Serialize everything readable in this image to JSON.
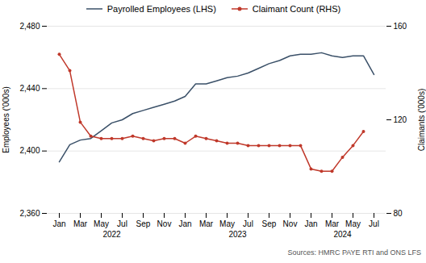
{
  "chart_data": {
    "type": "line",
    "categories": [
      "Jan",
      null,
      "Mar",
      null,
      "May",
      null,
      "Jul",
      null,
      "Sep",
      null,
      "Nov",
      null,
      "Jan",
      null,
      "Mar",
      null,
      "May",
      null,
      "Jul",
      null,
      "Sep",
      null,
      "Nov",
      null,
      "Jan",
      null,
      "Mar",
      null,
      "May",
      null,
      "Jul"
    ],
    "annotations": [
      "2022",
      "2023",
      "2024"
    ],
    "series": [
      {
        "name": "Payrolled Employees (LHS)",
        "color": "#3a5068",
        "values": [
          2393,
          2404,
          2407,
          2408,
          2413,
          2418,
          2420,
          2424,
          2426,
          2428,
          2430,
          2432,
          2435,
          2443,
          2443,
          2445,
          2447,
          2448,
          2450,
          2453,
          2456,
          2458,
          2461,
          2462,
          2462,
          2463,
          2461,
          2460,
          2461,
          2461,
          2449
        ]
      },
      {
        "name": "Claimant Count (RHS)",
        "color": "#c0392b",
        "axis": "y2",
        "marker": "circle",
        "values": [
          148,
          141,
          119,
          113,
          112,
          112,
          112,
          113,
          112,
          111,
          112,
          112,
          110,
          113,
          112,
          111,
          110,
          110,
          109,
          109,
          109,
          109,
          109,
          109,
          99,
          98,
          98,
          104,
          109,
          115,
          null
        ]
      }
    ],
    "ylabel": "Employees ('000s)",
    "y2label": "Claimants ('000s)",
    "ylim": [
      2360,
      2480
    ],
    "yticks": [
      {
        "value": 2360,
        "label": "2,360"
      },
      {
        "value": 2400,
        "label": "2,400"
      },
      {
        "value": 2440,
        "label": "2,440"
      },
      {
        "value": 2480,
        "label": "2,480"
      }
    ],
    "y2lim": [
      80,
      160
    ],
    "y2ticks": [
      80,
      120,
      160
    ],
    "grid": true,
    "legend": "top",
    "caption": "Sources: HMRC PAYE RTI and ONS LFS"
  }
}
